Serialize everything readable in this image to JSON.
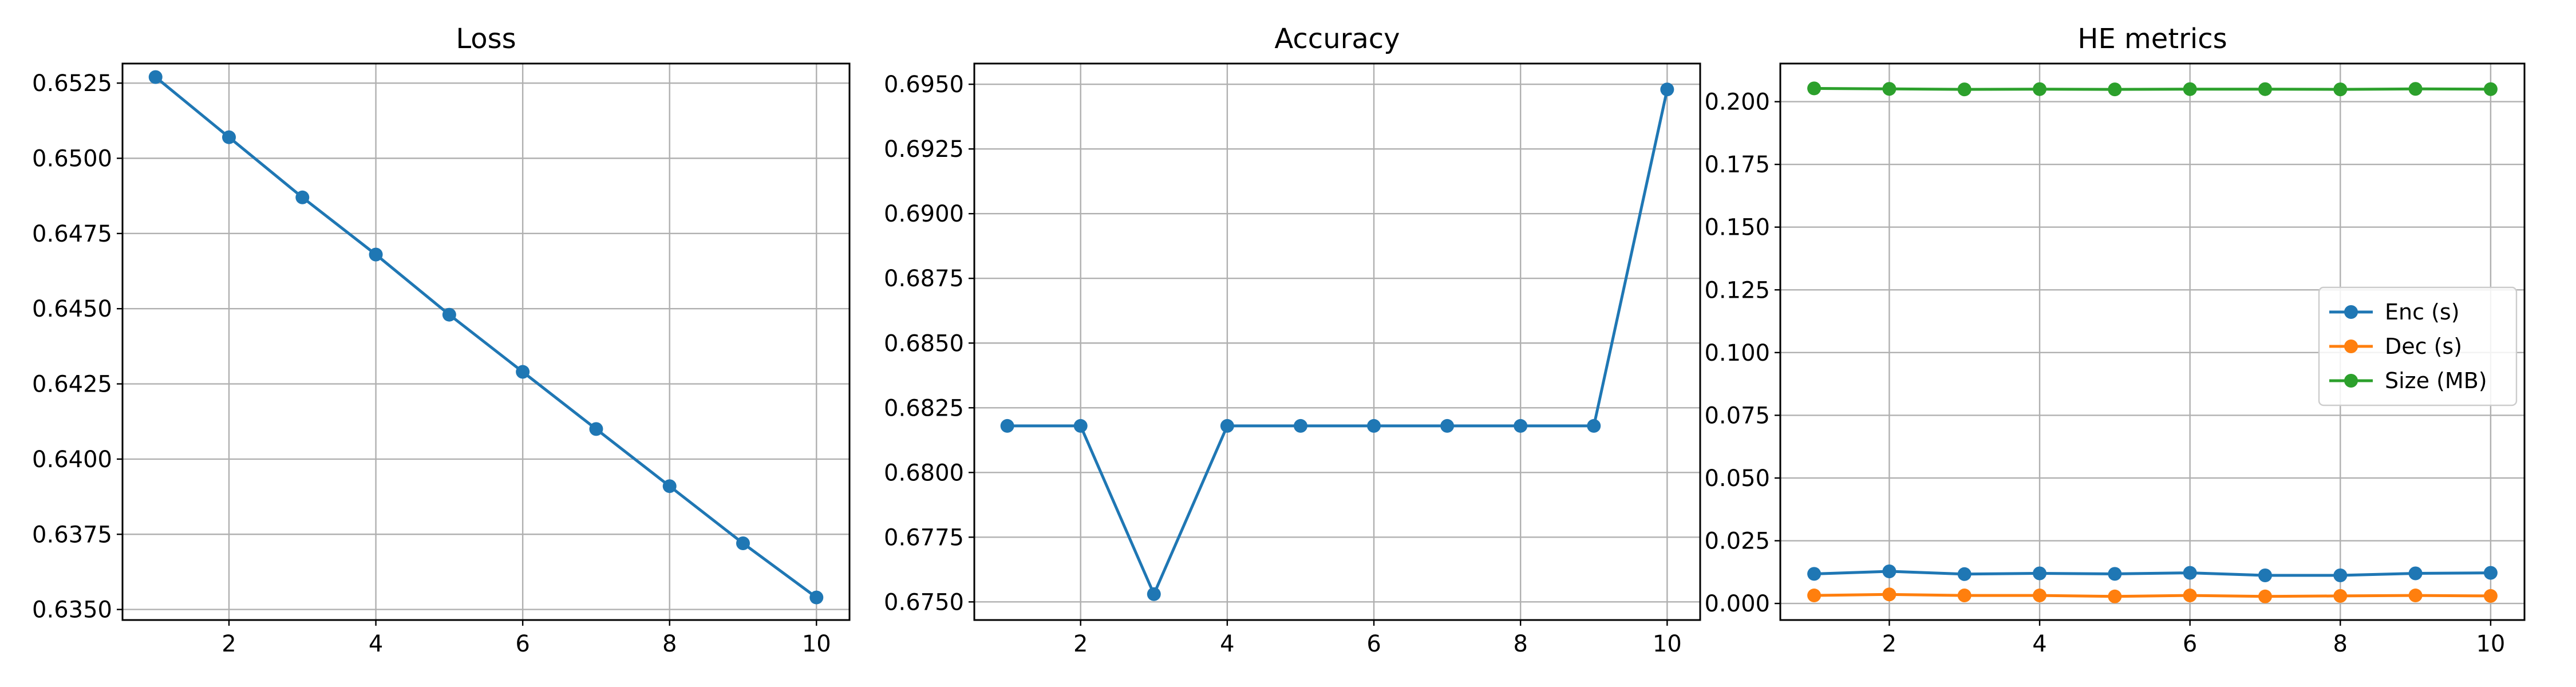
{
  "chart_data": [
    {
      "type": "line",
      "title": "Loss",
      "xlabel": "",
      "ylabel": "",
      "x": [
        1,
        2,
        3,
        4,
        5,
        6,
        7,
        8,
        9,
        10
      ],
      "xlim": [
        0.55,
        10.45
      ],
      "ylim": [
        0.63465,
        0.65315
      ],
      "xticks": [
        2,
        4,
        6,
        8,
        10
      ],
      "yticks": [
        0.635,
        0.6375,
        0.64,
        0.6425,
        0.645,
        0.6475,
        0.65,
        0.6525
      ],
      "ytick_decimals": 4,
      "grid": true,
      "legend": null,
      "series": [
        {
          "color": "#1f77b4",
          "values": [
            0.6527,
            0.6507,
            0.6487,
            0.6468,
            0.6448,
            0.6429,
            0.641,
            0.6391,
            0.6372,
            0.6354
          ]
        }
      ]
    },
    {
      "type": "line",
      "title": "Accuracy",
      "xlabel": "",
      "ylabel": "",
      "x": [
        1,
        2,
        3,
        4,
        5,
        6,
        7,
        8,
        9,
        10
      ],
      "xlim": [
        0.55,
        10.45
      ],
      "ylim": [
        0.6743,
        0.6958
      ],
      "xticks": [
        2,
        4,
        6,
        8,
        10
      ],
      "yticks": [
        0.675,
        0.6775,
        0.68,
        0.6825,
        0.685,
        0.6875,
        0.69,
        0.6925,
        0.695
      ],
      "ytick_decimals": 4,
      "grid": true,
      "legend": null,
      "series": [
        {
          "color": "#1f77b4",
          "values": [
            0.6818,
            0.6818,
            0.6753,
            0.6818,
            0.6818,
            0.6818,
            0.6818,
            0.6818,
            0.6818,
            0.6948
          ]
        }
      ]
    },
    {
      "type": "line",
      "title": "HE metrics",
      "xlabel": "",
      "ylabel": "",
      "x": [
        1,
        2,
        3,
        4,
        5,
        6,
        7,
        8,
        9,
        10
      ],
      "xlim": [
        0.55,
        10.45
      ],
      "ylim": [
        -0.0066,
        0.2152
      ],
      "xticks": [
        2,
        4,
        6,
        8,
        10
      ],
      "yticks": [
        0.0,
        0.025,
        0.05,
        0.075,
        0.1,
        0.125,
        0.15,
        0.175,
        0.2
      ],
      "ytick_decimals": 3,
      "grid": true,
      "legend": "center-right",
      "series": [
        {
          "name": "Enc (s)",
          "color": "#1f77b4",
          "values": [
            0.0118,
            0.0128,
            0.0117,
            0.012,
            0.0118,
            0.0122,
            0.0112,
            0.0112,
            0.012,
            0.0122
          ]
        },
        {
          "name": "Dec (s)",
          "color": "#ff7f0e",
          "values": [
            0.0032,
            0.0036,
            0.0032,
            0.0032,
            0.0028,
            0.0032,
            0.0028,
            0.003,
            0.0032,
            0.003
          ]
        },
        {
          "name": "Size (MB)",
          "color": "#2ca02c",
          "values": [
            0.2053,
            0.2051,
            0.2049,
            0.205,
            0.2049,
            0.205,
            0.205,
            0.2049,
            0.2051,
            0.205
          ]
        }
      ]
    }
  ]
}
